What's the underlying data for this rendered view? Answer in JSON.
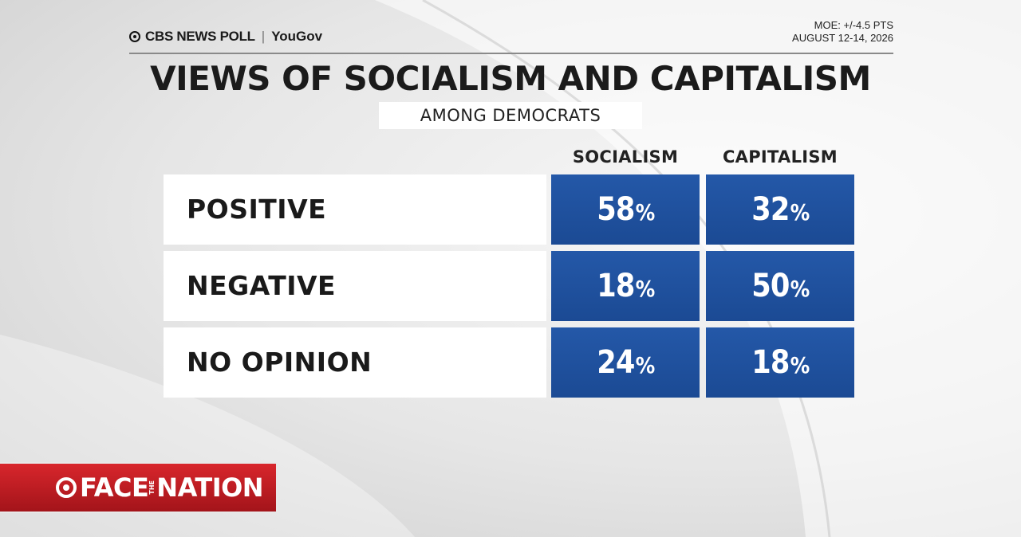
{
  "header": {
    "brand_cbs": "CBS NEWS POLL",
    "brand_sep": "|",
    "brand_partner": "YouGov",
    "moe": "MOE: +/-4.5 PTS",
    "dates": "AUGUST 12-14, 2026"
  },
  "logo": {
    "face": "FACE",
    "the": "THE",
    "nation": "NATION"
  },
  "chart_data": {
    "type": "table",
    "title": "VIEWS OF SOCIALISM AND CAPITALISM",
    "subtitle": "AMONG DEMOCRATS",
    "columns": [
      "SOCIALISM",
      "CAPITALISM"
    ],
    "rows": [
      {
        "label": "POSITIVE",
        "values": [
          58,
          32
        ]
      },
      {
        "label": "NEGATIVE",
        "values": [
          18,
          50
        ]
      },
      {
        "label": "NO OPINION",
        "values": [
          24,
          18
        ]
      }
    ],
    "unit": "%",
    "colors": {
      "cell": "#1f4e9a",
      "label_bg": "#ffffff",
      "brand_red": "#c81e25"
    }
  }
}
